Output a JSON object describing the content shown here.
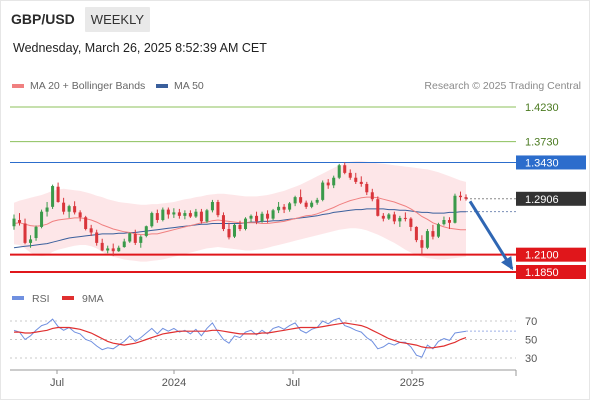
{
  "header": {
    "pair": "GBP/USD",
    "period": "WEEKLY"
  },
  "timestamp": "Wednesday, March 26, 2025 8:52:39 AM CET",
  "legend": {
    "ma20_label": "MA 20 + Bollinger Bands",
    "ma50_label": "MA 50",
    "credit": "Research © 2025 Trading Central"
  },
  "colors": {
    "ma20": "#f08080",
    "ma50": "#3a5f9c",
    "bollinger_fill": "#fde3e5",
    "up_candle": "#3a9a4a",
    "down_candle": "#d9353b",
    "support": "#e0161b",
    "resistance_blue": "#2c6dcc",
    "target_green": "#8cc05b",
    "current_price": "#333333",
    "rsi": "#7090e0",
    "rsi_ma": "#e03030",
    "arrow": "#2f66b3"
  },
  "chart_data": [
    {
      "type": "candlestick",
      "title": "GBP/USD",
      "period": "WEEKLY",
      "x_tick_labels": [
        "Jul",
        "2024",
        "Jul",
        "2025"
      ],
      "y_range": [
        1.16,
        1.44
      ],
      "levels": [
        {
          "value": 1.423,
          "label": "1.4230",
          "kind": "target"
        },
        {
          "value": 1.373,
          "label": "1.3730",
          "kind": "target"
        },
        {
          "value": 1.343,
          "label": "1.3430",
          "kind": "resistance"
        },
        {
          "value": 1.2906,
          "label": "1.2906",
          "kind": "current"
        },
        {
          "value": 1.21,
          "label": "1.2100",
          "kind": "support"
        },
        {
          "value": 1.185,
          "label": "1.1850",
          "kind": "support"
        }
      ],
      "forecast_arrow": {
        "from": 1.287,
        "to": 1.19
      },
      "candles": [
        [
          1.251,
          1.268,
          1.246,
          1.262
        ],
        [
          1.26,
          1.27,
          1.252,
          1.256
        ],
        [
          1.255,
          1.262,
          1.225,
          1.227
        ],
        [
          1.227,
          1.238,
          1.22,
          1.232
        ],
        [
          1.234,
          1.252,
          1.23,
          1.25
        ],
        [
          1.25,
          1.275,
          1.248,
          1.272
        ],
        [
          1.272,
          1.286,
          1.265,
          1.278
        ],
        [
          1.279,
          1.311,
          1.276,
          1.309
        ],
        [
          1.308,
          1.314,
          1.285,
          1.286
        ],
        [
          1.285,
          1.292,
          1.268,
          1.272
        ],
        [
          1.272,
          1.282,
          1.263,
          1.28
        ],
        [
          1.28,
          1.287,
          1.268,
          1.271
        ],
        [
          1.271,
          1.274,
          1.258,
          1.264
        ],
        [
          1.264,
          1.266,
          1.245,
          1.247
        ],
        [
          1.248,
          1.253,
          1.237,
          1.242
        ],
        [
          1.242,
          1.246,
          1.223,
          1.227
        ],
        [
          1.227,
          1.233,
          1.215,
          1.216
        ],
        [
          1.216,
          1.223,
          1.212,
          1.219
        ],
        [
          1.219,
          1.226,
          1.208,
          1.215
        ],
        [
          1.215,
          1.223,
          1.214,
          1.22
        ],
        [
          1.221,
          1.233,
          1.22,
          1.229
        ],
        [
          1.229,
          1.242,
          1.227,
          1.241
        ],
        [
          1.24,
          1.246,
          1.224,
          1.227
        ],
        [
          1.227,
          1.238,
          1.22,
          1.236
        ],
        [
          1.237,
          1.252,
          1.235,
          1.251
        ],
        [
          1.251,
          1.272,
          1.249,
          1.27
        ],
        [
          1.27,
          1.275,
          1.256,
          1.26
        ],
        [
          1.26,
          1.278,
          1.258,
          1.275
        ],
        [
          1.275,
          1.278,
          1.262,
          1.268
        ],
        [
          1.268,
          1.277,
          1.263,
          1.271
        ],
        [
          1.271,
          1.276,
          1.262,
          1.266
        ],
        [
          1.266,
          1.274,
          1.261,
          1.27
        ],
        [
          1.27,
          1.274,
          1.263,
          1.265
        ],
        [
          1.265,
          1.276,
          1.263,
          1.272
        ],
        [
          1.272,
          1.276,
          1.255,
          1.258
        ],
        [
          1.258,
          1.276,
          1.256,
          1.274
        ],
        [
          1.274,
          1.289,
          1.271,
          1.286
        ],
        [
          1.286,
          1.289,
          1.264,
          1.267
        ],
        [
          1.267,
          1.271,
          1.244,
          1.247
        ],
        [
          1.247,
          1.256,
          1.232,
          1.235
        ],
        [
          1.236,
          1.255,
          1.234,
          1.253
        ],
        [
          1.253,
          1.259,
          1.244,
          1.247
        ],
        [
          1.247,
          1.264,
          1.245,
          1.262
        ],
        [
          1.262,
          1.268,
          1.257,
          1.266
        ],
        [
          1.266,
          1.272,
          1.254,
          1.258
        ],
        [
          1.258,
          1.272,
          1.256,
          1.269
        ],
        [
          1.269,
          1.274,
          1.256,
          1.262
        ],
        [
          1.262,
          1.276,
          1.26,
          1.274
        ],
        [
          1.274,
          1.286,
          1.27,
          1.279
        ],
        [
          1.279,
          1.283,
          1.27,
          1.275
        ],
        [
          1.275,
          1.286,
          1.272,
          1.284
        ],
        [
          1.284,
          1.295,
          1.28,
          1.293
        ],
        [
          1.293,
          1.304,
          1.283,
          1.285
        ],
        [
          1.285,
          1.288,
          1.276,
          1.279
        ],
        [
          1.279,
          1.288,
          1.277,
          1.285
        ],
        [
          1.285,
          1.292,
          1.282,
          1.289
        ],
        [
          1.289,
          1.317,
          1.287,
          1.314
        ],
        [
          1.314,
          1.319,
          1.305,
          1.31
        ],
        [
          1.31,
          1.324,
          1.306,
          1.321
        ],
        [
          1.321,
          1.341,
          1.319,
          1.339
        ],
        [
          1.339,
          1.343,
          1.326,
          1.328
        ],
        [
          1.328,
          1.333,
          1.318,
          1.321
        ],
        [
          1.321,
          1.328,
          1.312,
          1.315
        ],
        [
          1.315,
          1.323,
          1.308,
          1.312
        ],
        [
          1.312,
          1.315,
          1.296,
          1.3
        ],
        [
          1.3,
          1.305,
          1.287,
          1.29
        ],
        [
          1.29,
          1.294,
          1.265,
          1.266
        ],
        [
          1.266,
          1.27,
          1.258,
          1.262
        ],
        [
          1.262,
          1.27,
          1.26,
          1.268
        ],
        [
          1.268,
          1.272,
          1.254,
          1.258
        ],
        [
          1.258,
          1.266,
          1.25,
          1.263
        ],
        [
          1.263,
          1.271,
          1.258,
          1.262
        ],
        [
          1.262,
          1.264,
          1.244,
          1.25
        ],
        [
          1.25,
          1.251,
          1.228,
          1.231
        ],
        [
          1.231,
          1.238,
          1.21,
          1.22
        ],
        [
          1.22,
          1.247,
          1.218,
          1.244
        ],
        [
          1.244,
          1.253,
          1.232,
          1.236
        ],
        [
          1.236,
          1.256,
          1.234,
          1.254
        ],
        [
          1.254,
          1.265,
          1.252,
          1.26
        ],
        [
          1.26,
          1.264,
          1.247,
          1.256
        ],
        [
          1.256,
          1.298,
          1.255,
          1.295
        ],
        [
          1.295,
          1.301,
          1.288,
          1.293
        ],
        [
          1.293,
          1.297,
          1.288,
          1.2906
        ]
      ],
      "ma20": [
        1.255,
        1.256,
        1.254,
        1.252,
        1.251,
        1.252,
        1.254,
        1.258,
        1.26,
        1.261,
        1.262,
        1.263,
        1.263,
        1.262,
        1.26,
        1.257,
        1.253,
        1.25,
        1.247,
        1.245,
        1.243,
        1.242,
        1.24,
        1.239,
        1.239,
        1.24,
        1.24,
        1.242,
        1.244,
        1.246,
        1.248,
        1.25,
        1.252,
        1.254,
        1.256,
        1.257,
        1.259,
        1.26,
        1.259,
        1.258,
        1.257,
        1.256,
        1.256,
        1.256,
        1.256,
        1.255,
        1.255,
        1.256,
        1.257,
        1.258,
        1.26,
        1.262,
        1.264,
        1.266,
        1.267,
        1.269,
        1.272,
        1.275,
        1.278,
        1.282,
        1.285,
        1.288,
        1.29,
        1.292,
        1.293,
        1.293,
        1.292,
        1.29,
        1.288,
        1.286,
        1.283,
        1.28,
        1.276,
        1.271,
        1.265,
        1.261,
        1.256,
        1.253,
        1.25,
        1.248,
        1.247,
        1.246,
        1.246
      ],
      "ma50": [
        1.22,
        1.221,
        1.222,
        1.223,
        1.224,
        1.225,
        1.226,
        1.228,
        1.23,
        1.232,
        1.234,
        1.235,
        1.236,
        1.237,
        1.238,
        1.239,
        1.24,
        1.24,
        1.24,
        1.241,
        1.241,
        1.242,
        1.242,
        1.243,
        1.244,
        1.245,
        1.246,
        1.247,
        1.248,
        1.249,
        1.25,
        1.251,
        1.252,
        1.253,
        1.254,
        1.254,
        1.255,
        1.255,
        1.255,
        1.255,
        1.255,
        1.255,
        1.256,
        1.257,
        1.257,
        1.258,
        1.258,
        1.259,
        1.259,
        1.26,
        1.261,
        1.262,
        1.263,
        1.264,
        1.265,
        1.266,
        1.268,
        1.269,
        1.271,
        1.272,
        1.273,
        1.274,
        1.275,
        1.275,
        1.276,
        1.276,
        1.276,
        1.276,
        1.275,
        1.275,
        1.274,
        1.274,
        1.273,
        1.272,
        1.271,
        1.271,
        1.27,
        1.27,
        1.27,
        1.271,
        1.271,
        1.272,
        1.272
      ],
      "bollinger_upper": [
        1.285,
        1.288,
        1.29,
        1.292,
        1.294,
        1.296,
        1.299,
        1.302,
        1.304,
        1.305,
        1.304,
        1.303,
        1.302,
        1.3,
        1.298,
        1.295,
        1.293,
        1.29,
        1.288,
        1.286,
        1.285,
        1.284,
        1.283,
        1.282,
        1.282,
        1.283,
        1.283,
        1.284,
        1.285,
        1.286,
        1.288,
        1.29,
        1.291,
        1.293,
        1.294,
        1.296,
        1.297,
        1.298,
        1.298,
        1.297,
        1.296,
        1.295,
        1.294,
        1.294,
        1.294,
        1.295,
        1.296,
        1.298,
        1.3,
        1.302,
        1.305,
        1.308,
        1.311,
        1.315,
        1.319,
        1.323,
        1.327,
        1.331,
        1.335,
        1.339,
        1.342,
        1.344,
        1.345,
        1.345,
        1.344,
        1.343,
        1.342,
        1.341,
        1.34,
        1.339,
        1.338,
        1.337,
        1.336,
        1.335,
        1.334,
        1.333,
        1.331,
        1.329,
        1.326,
        1.323,
        1.32,
        1.317,
        1.315
      ],
      "bollinger_lower": [
        1.225,
        1.224,
        1.219,
        1.213,
        1.209,
        1.208,
        1.209,
        1.214,
        1.217,
        1.219,
        1.221,
        1.223,
        1.224,
        1.224,
        1.222,
        1.219,
        1.214,
        1.21,
        1.207,
        1.205,
        1.203,
        1.202,
        1.201,
        1.2,
        1.2,
        1.201,
        1.202,
        1.203,
        1.205,
        1.207,
        1.209,
        1.211,
        1.213,
        1.215,
        1.217,
        1.219,
        1.22,
        1.221,
        1.22,
        1.219,
        1.218,
        1.217,
        1.216,
        1.216,
        1.217,
        1.218,
        1.22,
        1.222,
        1.224,
        1.226,
        1.228,
        1.23,
        1.232,
        1.234,
        1.236,
        1.238,
        1.24,
        1.242,
        1.244,
        1.246,
        1.247,
        1.248,
        1.248,
        1.247,
        1.245,
        1.242,
        1.239,
        1.235,
        1.231,
        1.227,
        1.222,
        1.217,
        1.213,
        1.21,
        1.207,
        1.205,
        1.204,
        1.203,
        1.203,
        1.204,
        1.205,
        1.206,
        1.207
      ]
    },
    {
      "type": "line",
      "series_names": [
        "RSI",
        "9MA"
      ],
      "y_tick_labels": [
        "70",
        "50",
        "30"
      ],
      "y_range": [
        20,
        80
      ],
      "rsi": [
        60,
        58,
        50,
        54,
        60,
        65,
        67,
        72,
        64,
        60,
        63,
        58,
        56,
        50,
        48,
        43,
        39,
        41,
        40,
        44,
        48,
        54,
        48,
        52,
        57,
        62,
        56,
        62,
        59,
        62,
        58,
        60,
        56,
        61,
        54,
        62,
        68,
        58,
        50,
        46,
        54,
        52,
        58,
        60,
        55,
        60,
        56,
        62,
        64,
        61,
        65,
        68,
        60,
        57,
        61,
        63,
        70,
        67,
        71,
        73,
        65,
        63,
        60,
        58,
        52,
        48,
        40,
        42,
        46,
        44,
        47,
        47,
        42,
        33,
        31,
        44,
        40,
        48,
        51,
        49,
        57,
        58,
        59
      ],
      "rsi_ma": [
        58,
        58,
        57,
        57,
        58,
        59,
        60,
        62,
        63,
        63,
        63,
        62,
        61,
        59,
        57,
        54,
        51,
        48,
        46,
        45,
        44,
        45,
        46,
        48,
        50,
        52,
        54,
        56,
        57,
        58,
        59,
        59,
        59,
        59,
        59,
        59,
        60,
        60,
        59,
        58,
        57,
        56,
        56,
        56,
        56,
        57,
        57,
        58,
        59,
        60,
        61,
        62,
        63,
        63,
        63,
        63,
        64,
        65,
        66,
        67,
        68,
        67,
        66,
        65,
        63,
        60,
        57,
        54,
        51,
        49,
        47,
        46,
        45,
        44,
        42,
        41,
        41,
        42,
        43,
        45,
        47,
        50,
        52
      ]
    }
  ]
}
